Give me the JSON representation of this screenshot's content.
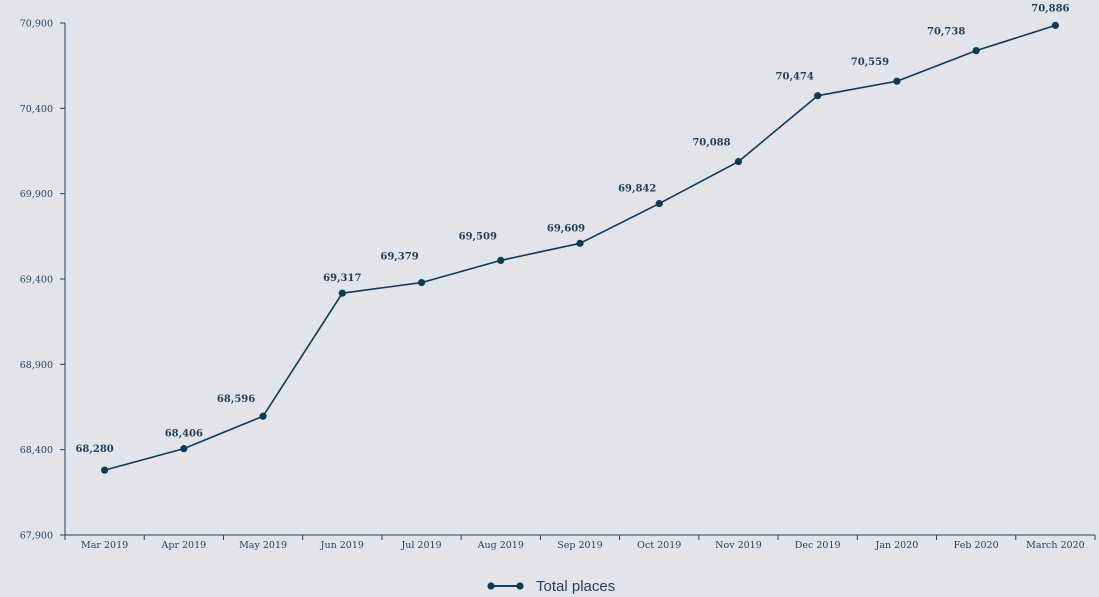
{
  "colors": {
    "background": "#e3e4e9",
    "series": "#0f3a55",
    "text": "#1f3f5a",
    "axis": "#1f3f5a"
  },
  "chart_data": {
    "type": "line",
    "title": "",
    "xlabel": "",
    "ylabel": "",
    "categories": [
      "Mar 2019",
      "Apr 2019",
      "May 2019",
      "Jun 2019",
      "Jul 2019",
      "Aug 2019",
      "Sep 2019",
      "Oct 2019",
      "Nov 2019",
      "Dec 2019",
      "Jan 2020",
      "Feb 2020",
      "March 2020"
    ],
    "series": [
      {
        "name": "Total places",
        "values": [
          68280,
          68406,
          68596,
          69317,
          69379,
          69509,
          69609,
          69842,
          70088,
          70474,
          70559,
          70738,
          70886
        ],
        "value_labels": [
          "68,280",
          "68,406",
          "68,596",
          "69,317",
          "69,379",
          "69,509",
          "69,609",
          "69,842",
          "70,088",
          "70,474",
          "70,559",
          "70,738",
          "70,886"
        ]
      }
    ],
    "ylim": [
      67900,
      70900
    ],
    "yticks": [
      67900,
      68400,
      68900,
      69400,
      69900,
      70400,
      70900
    ],
    "ytick_labels": [
      "67,900",
      "68,400",
      "68,900",
      "69,400",
      "69,900",
      "70,400",
      "70,900"
    ],
    "grid": false,
    "legend_position": "bottom-center"
  }
}
